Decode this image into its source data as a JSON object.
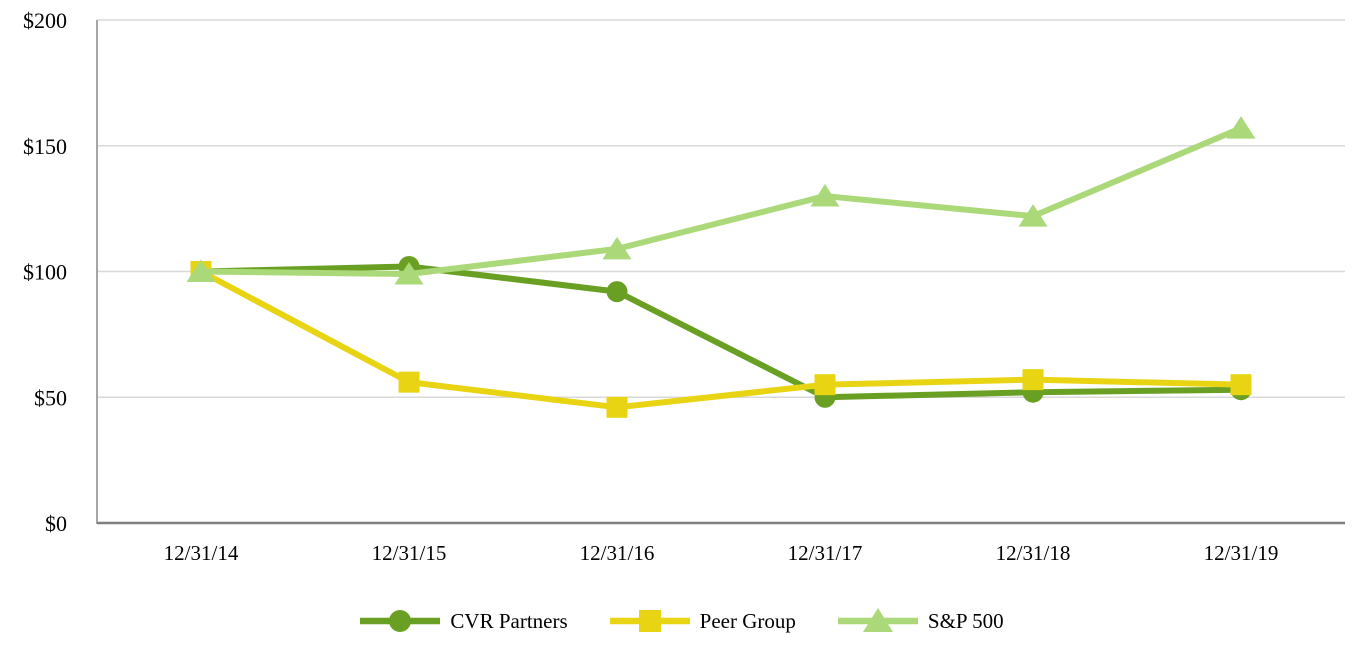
{
  "chart_data": {
    "type": "line",
    "title": "",
    "xlabel": "",
    "ylabel": "",
    "x": [
      "12/31/14",
      "12/31/15",
      "12/31/16",
      "12/31/17",
      "12/31/18",
      "12/31/19"
    ],
    "series": [
      {
        "name": "CVR Partners",
        "marker": "circle",
        "color": "#69a023",
        "values": [
          100,
          102,
          92,
          50,
          52,
          53
        ]
      },
      {
        "name": "Peer Group",
        "marker": "square",
        "color": "#e9d414",
        "values": [
          100,
          56,
          46,
          55,
          57,
          55
        ]
      },
      {
        "name": "S&P 500",
        "marker": "triangle",
        "color": "#abd878",
        "values": [
          100,
          99,
          109,
          130,
          122,
          157
        ]
      }
    ],
    "yticks": [
      0,
      50,
      100,
      150,
      200
    ],
    "y_tick_labels": [
      "$0",
      "$50",
      "$100",
      "$150",
      "$200"
    ],
    "ylim": [
      0,
      200
    ],
    "grid": true,
    "legend_position": "bottom"
  },
  "colors": {
    "background": "#ffffff",
    "gridline": "#d9d9d9",
    "y_axis_line": "#a6a6a6",
    "x_axis_line": "#7f7f7f",
    "tick_text": "#000000"
  }
}
